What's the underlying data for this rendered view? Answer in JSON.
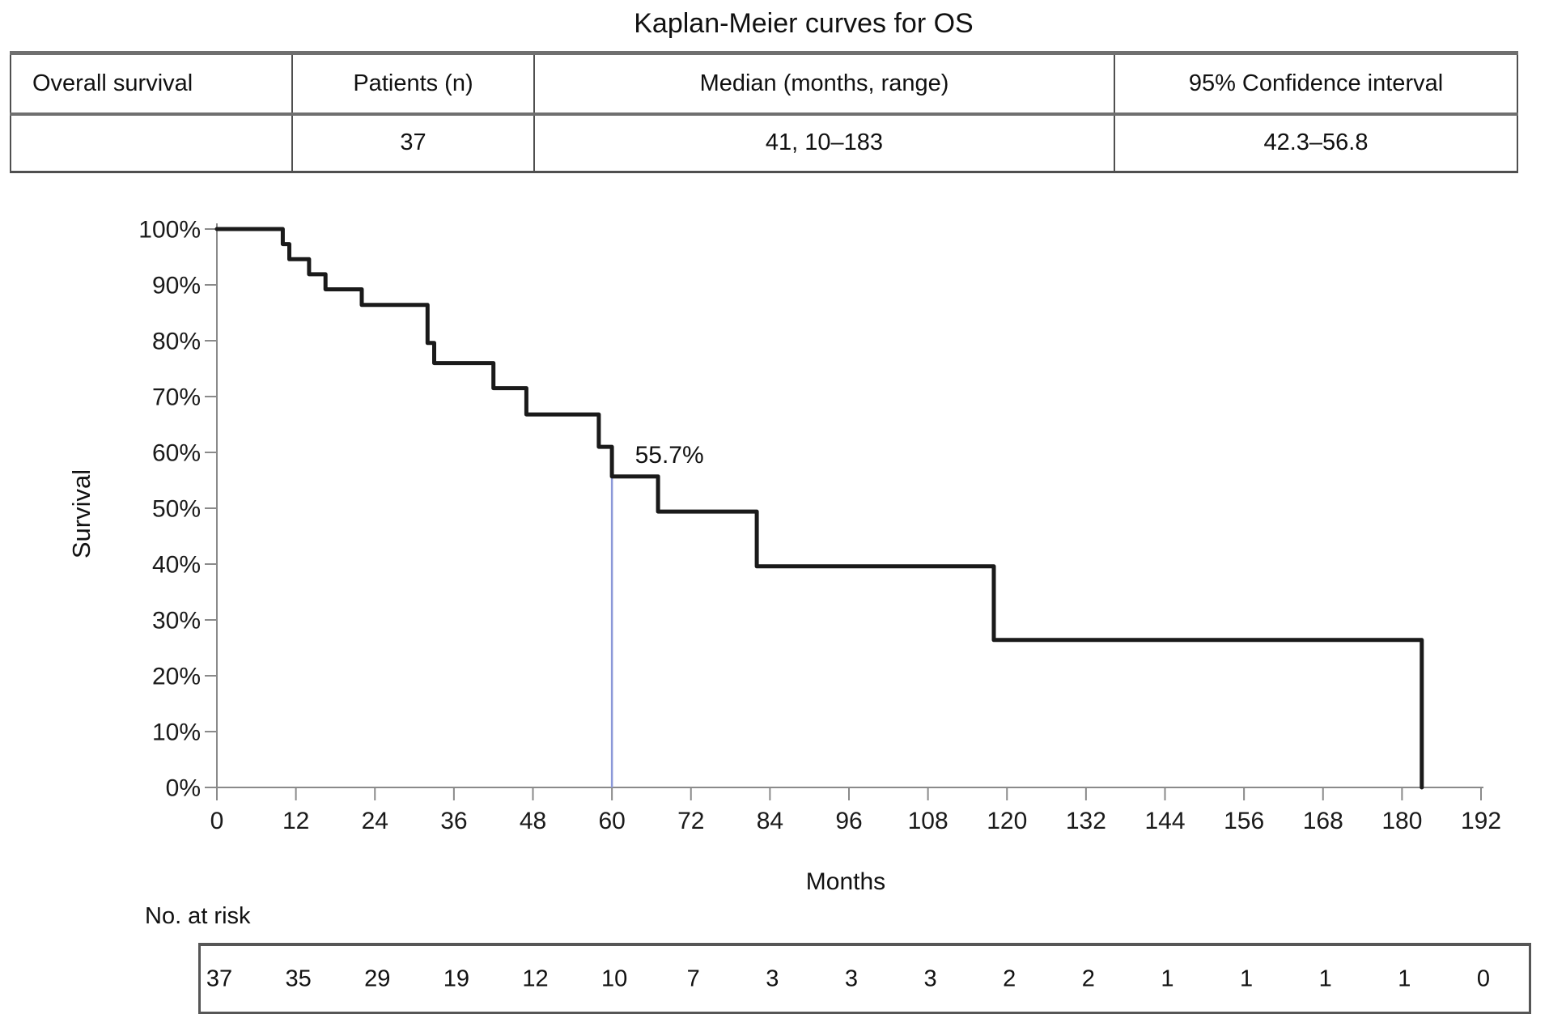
{
  "title": "Kaplan-Meier curves for OS",
  "summary_table": {
    "headers": [
      "Overall survival",
      "Patients (n)",
      "Median (months, range)",
      "95% Confidence interval"
    ],
    "row": [
      "",
      "37",
      "41, 10–183",
      "42.3–56.8"
    ]
  },
  "chart_data": {
    "type": "line",
    "subtype": "kaplan-meier-step",
    "title": "Kaplan-Meier curves for OS",
    "xlabel": "Months",
    "ylabel": "Survival",
    "xlim": [
      0,
      192
    ],
    "ylim": [
      0,
      100
    ],
    "grid": false,
    "legend": "none",
    "axis_color": "#8a8a8a",
    "x_ticks": [
      {
        "value": 0,
        "label": "0"
      },
      {
        "value": 12,
        "label": "12"
      },
      {
        "value": 24,
        "label": "24"
      },
      {
        "value": 36,
        "label": "36"
      },
      {
        "value": 48,
        "label": "48"
      },
      {
        "value": 60,
        "label": "60"
      },
      {
        "value": 72,
        "label": "72"
      },
      {
        "value": 84,
        "label": "84"
      },
      {
        "value": 96,
        "label": "96"
      },
      {
        "value": 108,
        "label": "108"
      },
      {
        "value": 120,
        "label": "120"
      },
      {
        "value": 132,
        "label": "132"
      },
      {
        "value": 144,
        "label": "144"
      },
      {
        "value": 156,
        "label": "156"
      },
      {
        "value": 168,
        "label": "168"
      },
      {
        "value": 180,
        "label": "180"
      },
      {
        "value": 192,
        "label": "192"
      }
    ],
    "y_ticks": [
      {
        "value": 100,
        "label": "100%"
      },
      {
        "value": 90,
        "label": "90%"
      },
      {
        "value": 80,
        "label": "80%"
      },
      {
        "value": 70,
        "label": "70%"
      },
      {
        "value": 60,
        "label": "60%"
      },
      {
        "value": 50,
        "label": "50%"
      },
      {
        "value": 40,
        "label": "40%"
      },
      {
        "value": 30,
        "label": "30%"
      },
      {
        "value": 20,
        "label": "20%"
      },
      {
        "value": 10,
        "label": "10%"
      },
      {
        "value": 0,
        "label": "0%"
      }
    ],
    "series": [
      {
        "name": "Overall survival",
        "color": "#1a1a1a",
        "step_points": [
          {
            "t": 0,
            "s": 100
          },
          {
            "t": 10,
            "s": 97.3
          },
          {
            "t": 11,
            "s": 94.6
          },
          {
            "t": 14,
            "s": 91.9
          },
          {
            "t": 16.5,
            "s": 89.2
          },
          {
            "t": 22,
            "s": 86.4
          },
          {
            "t": 32,
            "s": 79.6
          },
          {
            "t": 33,
            "s": 76.0
          },
          {
            "t": 42,
            "s": 71.5
          },
          {
            "t": 47,
            "s": 66.8
          },
          {
            "t": 58,
            "s": 61.0
          },
          {
            "t": 60,
            "s": 55.7
          },
          {
            "t": 67,
            "s": 49.4
          },
          {
            "t": 82,
            "s": 39.6
          },
          {
            "t": 118,
            "s": 26.4
          },
          {
            "t": 183,
            "s": 0
          }
        ]
      }
    ],
    "annotation": {
      "text": "55.7%",
      "month": 63.5,
      "pct": 58.1
    },
    "reference_line": {
      "month": 60,
      "from_pct": 0,
      "to_pct": 55.7,
      "color": "#8b98d8"
    }
  },
  "at_risk": {
    "label": "No. at risk",
    "entries": [
      {
        "month": 0,
        "value": "37"
      },
      {
        "month": 12,
        "value": "35"
      },
      {
        "month": 24,
        "value": "29"
      },
      {
        "month": 36,
        "value": "19"
      },
      {
        "month": 48,
        "value": "12"
      },
      {
        "month": 60,
        "value": "10"
      },
      {
        "month": 72,
        "value": "7"
      },
      {
        "month": 84,
        "value": "3"
      },
      {
        "month": 96,
        "value": "3"
      },
      {
        "month": 108,
        "value": "3"
      },
      {
        "month": 120,
        "value": "2"
      },
      {
        "month": 132,
        "value": "2"
      },
      {
        "month": 144,
        "value": "1"
      },
      {
        "month": 156,
        "value": "1"
      },
      {
        "month": 168,
        "value": "1"
      },
      {
        "month": 180,
        "value": "1"
      },
      {
        "month": 192,
        "value": "0"
      }
    ]
  }
}
